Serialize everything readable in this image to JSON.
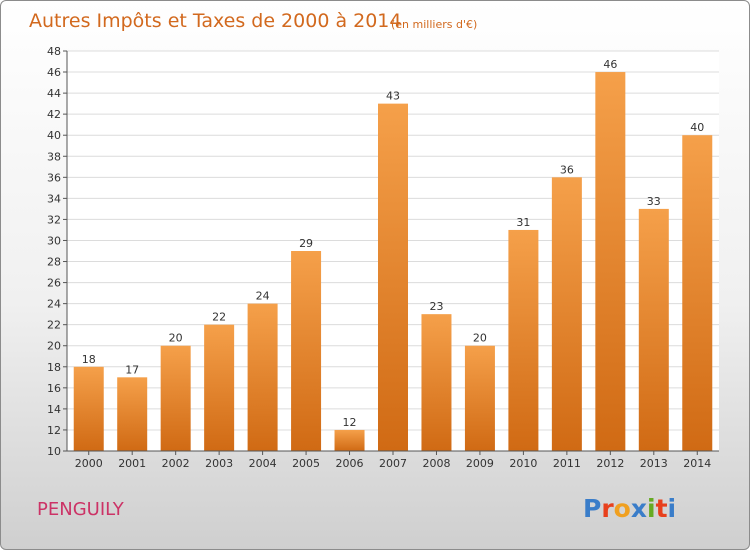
{
  "chart_data": {
    "type": "bar",
    "title": "Autres Impôts et Taxes de 2000 à 2014",
    "subtitle": "(en milliers d'€)",
    "categories": [
      "2000",
      "2001",
      "2002",
      "2003",
      "2004",
      "2005",
      "2006",
      "2007",
      "2008",
      "2009",
      "2010",
      "2011",
      "2012",
      "2013",
      "2014"
    ],
    "values": [
      18,
      17,
      20,
      22,
      24,
      29,
      12,
      43,
      23,
      20,
      31,
      36,
      46,
      33,
      40
    ],
    "ylim": [
      10,
      48
    ],
    "yticks": [
      10,
      12,
      14,
      16,
      18,
      20,
      22,
      24,
      26,
      28,
      30,
      32,
      34,
      36,
      38,
      40,
      42,
      44,
      46,
      48
    ],
    "grid": true,
    "bar_color": "#f0922e",
    "bar_color_dark": "#d06a14"
  },
  "footer": {
    "place": "PENGUILY",
    "logo": "Proxiti"
  },
  "colors": {
    "title": "#d2691e",
    "place": "#cc3366"
  }
}
